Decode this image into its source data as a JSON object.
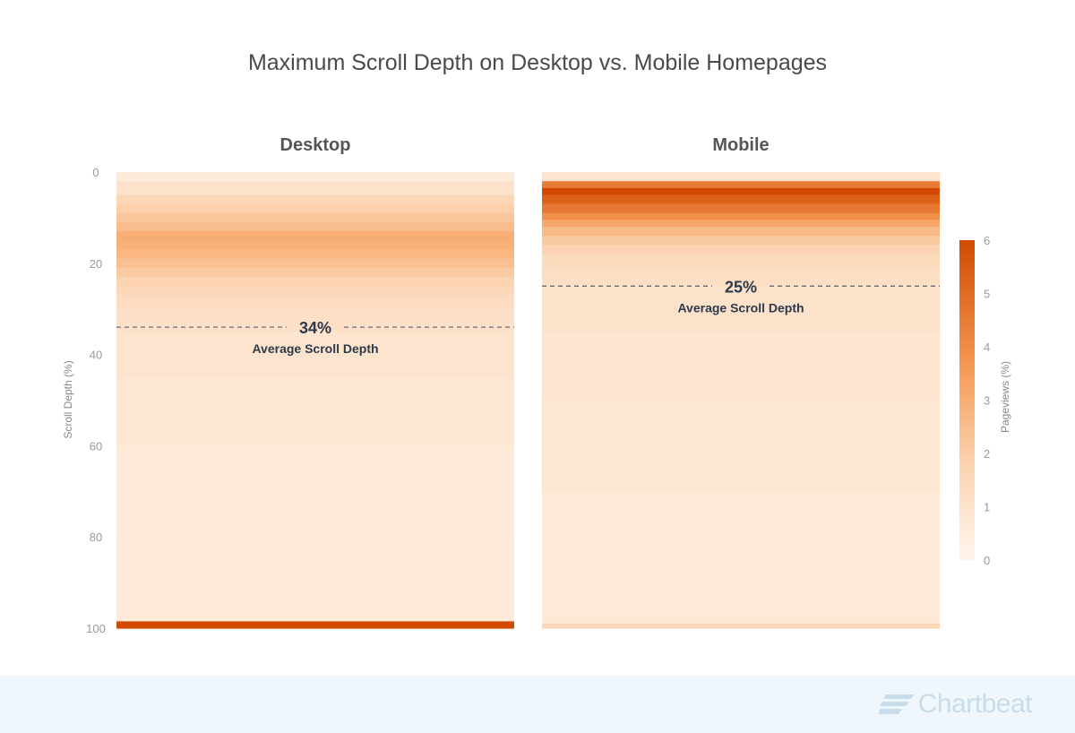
{
  "chart_data": {
    "type": "heatmap",
    "title": "Maximum Scroll Depth on Desktop vs. Mobile Homepages",
    "ylabel": "Scroll Depth (%)",
    "yticks": [
      "0",
      "20",
      "40",
      "60",
      "80",
      "100"
    ],
    "ylim": [
      0,
      100
    ],
    "colorbar": {
      "label": "Pageviews (%)",
      "range": [
        0,
        6
      ],
      "ticks": [
        "0",
        "1",
        "2",
        "3",
        "4",
        "5",
        "6"
      ],
      "color_low": "#fff5ec",
      "color_high": "#d14a00"
    },
    "panels": [
      {
        "name": "Desktop",
        "average_scroll_depth": 34,
        "average_value_label": "34%",
        "average_caption": "Average Scroll Depth",
        "bands": [
          {
            "from": 0,
            "to": 2,
            "value": 0.5
          },
          {
            "from": 2,
            "to": 5,
            "value": 1.0
          },
          {
            "from": 5,
            "to": 7,
            "value": 1.6
          },
          {
            "from": 7,
            "to": 9,
            "value": 1.9
          },
          {
            "from": 9,
            "to": 11,
            "value": 2.2
          },
          {
            "from": 11,
            "to": 13,
            "value": 2.5
          },
          {
            "from": 13,
            "to": 15,
            "value": 3.0
          },
          {
            "from": 15,
            "to": 17,
            "value": 2.9
          },
          {
            "from": 17,
            "to": 19,
            "value": 2.7
          },
          {
            "from": 19,
            "to": 21,
            "value": 2.4
          },
          {
            "from": 21,
            "to": 23,
            "value": 2.1
          },
          {
            "from": 23,
            "to": 25,
            "value": 1.8
          },
          {
            "from": 25,
            "to": 27,
            "value": 1.6
          },
          {
            "from": 27,
            "to": 30,
            "value": 1.3
          },
          {
            "from": 30,
            "to": 35,
            "value": 1.1
          },
          {
            "from": 35,
            "to": 45,
            "value": 0.9
          },
          {
            "from": 45,
            "to": 60,
            "value": 0.75
          },
          {
            "from": 60,
            "to": 80,
            "value": 0.6
          },
          {
            "from": 80,
            "to": 98.5,
            "value": 0.55
          },
          {
            "from": 98.5,
            "to": 100,
            "value": 6.0
          }
        ]
      },
      {
        "name": "Mobile",
        "average_scroll_depth": 25,
        "average_value_label": "25%",
        "average_caption": "Average Scroll Depth",
        "bands": [
          {
            "from": 0,
            "to": 2,
            "value": 0.9
          },
          {
            "from": 2,
            "to": 3.5,
            "value": 4.5
          },
          {
            "from": 3.5,
            "to": 5,
            "value": 6.0
          },
          {
            "from": 5,
            "to": 7,
            "value": 5.3
          },
          {
            "from": 7,
            "to": 9,
            "value": 4.6
          },
          {
            "from": 9,
            "to": 10.5,
            "value": 3.9
          },
          {
            "from": 10.5,
            "to": 12,
            "value": 3.2
          },
          {
            "from": 12,
            "to": 14,
            "value": 2.6
          },
          {
            "from": 14,
            "to": 16,
            "value": 2.1
          },
          {
            "from": 16,
            "to": 18,
            "value": 1.7
          },
          {
            "from": 18,
            "to": 21,
            "value": 1.4
          },
          {
            "from": 21,
            "to": 25,
            "value": 1.2
          },
          {
            "from": 25,
            "to": 35,
            "value": 1.0
          },
          {
            "from": 35,
            "to": 50,
            "value": 0.85
          },
          {
            "from": 50,
            "to": 70,
            "value": 0.75
          },
          {
            "from": 70,
            "to": 99,
            "value": 0.65
          },
          {
            "from": 99,
            "to": 100,
            "value": 1.6
          }
        ]
      }
    ]
  },
  "footer": {
    "logo_text": "Chartbeat",
    "background": "#eff7fd"
  }
}
